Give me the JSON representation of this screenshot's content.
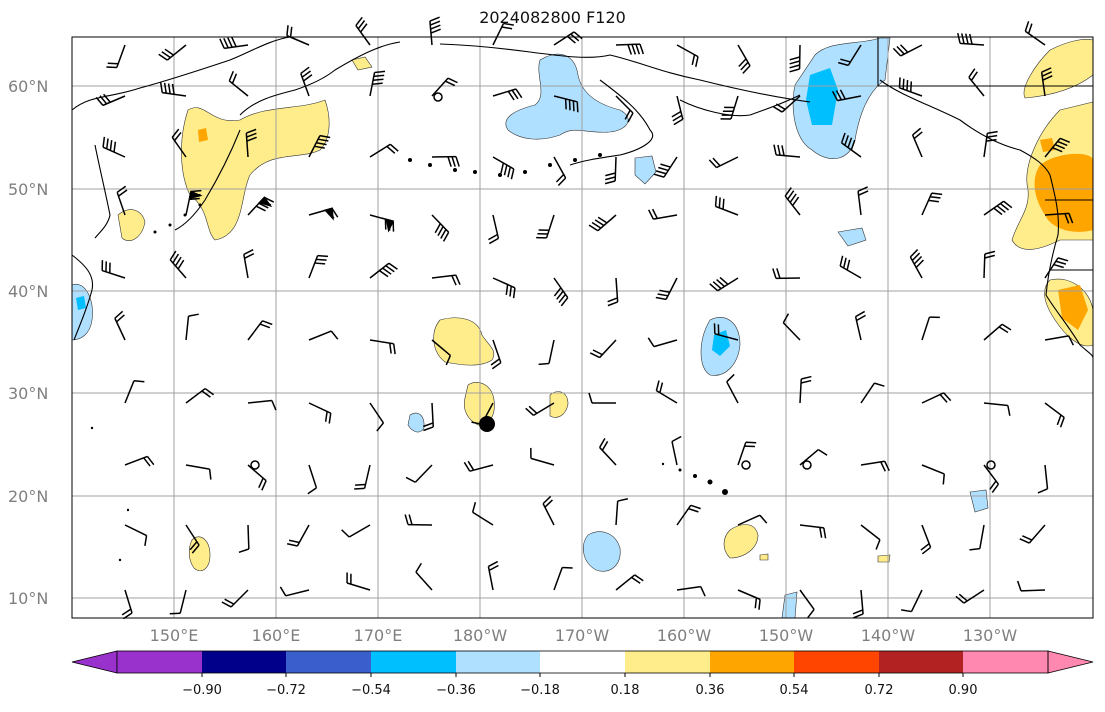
{
  "title": "2024082800 F120",
  "latitude_labels": [
    "60°N",
    "50°N",
    "40°N",
    "30°N",
    "20°N",
    "10°N"
  ],
  "longitude_labels": [
    "150°E",
    "160°E",
    "170°E",
    "180°W",
    "170°W",
    "160°W",
    "150°W",
    "140°W",
    "130°W"
  ],
  "colorbar": {
    "tick_labels": [
      "−0.90",
      "−0.72",
      "−0.54",
      "−0.36",
      "−0.18",
      "0.18",
      "0.36",
      "0.54",
      "0.72",
      "0.90"
    ],
    "colors": [
      "#9932cc",
      "#00008b",
      "#3a5fcd",
      "#00bfff",
      "#b0e0ff",
      "#ffffff",
      "#ffec8b",
      "#ffa500",
      "#ff4500",
      "#b22222",
      "#ff88b0"
    ]
  },
  "palette": {
    "positive_light": "#ffec8b",
    "positive_mid": "#ffa500",
    "negative_light": "#b0e0ff",
    "negative_mid": "#00bfff",
    "grid": "#a0a0a0",
    "coast": "#000000"
  }
}
